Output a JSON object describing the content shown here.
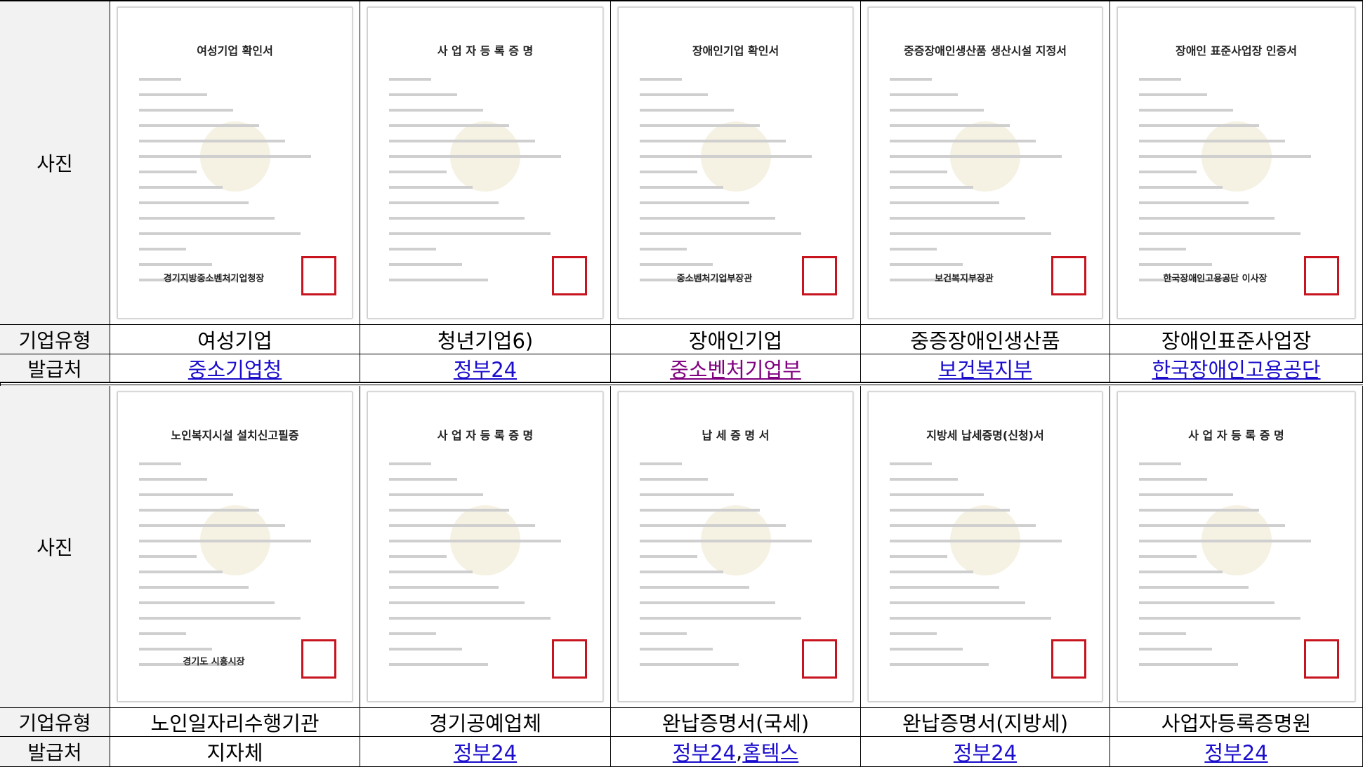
{
  "issuer_separator": ", ",
  "sections": [
    {
      "row_labels": [
        "사진",
        "기업유형",
        "발급처"
      ],
      "columns": [
        {
          "doc_title": "여성기업 확인서",
          "doc_footer": "경기지방중소벤처기업청장",
          "type": "여성기업",
          "issuers": [
            {
              "text": "중소기업청",
              "visited": false
            }
          ]
        },
        {
          "doc_title": "사 업 자 등 록 증 명",
          "type": "청년기업6)",
          "issuers": [
            {
              "text": "정부24",
              "visited": false
            }
          ]
        },
        {
          "doc_title": "장애인기업 확인서",
          "doc_footer": "중소벤처기업부장관",
          "type": "장애인기업",
          "issuers": [
            {
              "text": "중소벤처기업부",
              "visited": true
            }
          ]
        },
        {
          "doc_title": "중증장애인생산품 생산시설 지정서",
          "doc_footer": "보건복지부장관",
          "type": "중증장애인생산품",
          "issuers": [
            {
              "text": "보건복지부",
              "visited": false
            }
          ]
        },
        {
          "doc_title": "장애인 표준사업장 인증서",
          "doc_footer": "한국장애인고용공단 이사장",
          "type": "장애인표준사업장",
          "issuers": [
            {
              "text": "한국장애인고용공단",
              "visited": false
            }
          ]
        }
      ]
    },
    {
      "row_labels": [
        "사진",
        "기업유형",
        "발급처"
      ],
      "columns": [
        {
          "doc_title": "노인복지시설 설치신고필증",
          "doc_footer": "경기도 시흥시장",
          "type": "노인일자리수행기관",
          "issuers": [
            {
              "text": "지자체",
              "plain": true
            }
          ]
        },
        {
          "doc_title": "사 업 자 등 록 증 명",
          "type": "경기공예업체",
          "issuers": [
            {
              "text": "정부24",
              "visited": false
            }
          ]
        },
        {
          "doc_title": "납 세 증 명 서",
          "type": "완납증명서(국세)",
          "issuers": [
            {
              "text": "정부24",
              "visited": false
            },
            {
              "text": "홈텍스",
              "visited": false
            }
          ]
        },
        {
          "doc_title": "지방세 납세증명(신청)서",
          "type": "완납증명서(지방세)",
          "issuers": [
            {
              "text": "정부24",
              "visited": false
            }
          ]
        },
        {
          "doc_title": "사 업 자 등 록 증 명",
          "type": "사업자등록증명원",
          "issuers": [
            {
              "text": "정부24",
              "visited": false
            }
          ]
        }
      ]
    }
  ]
}
